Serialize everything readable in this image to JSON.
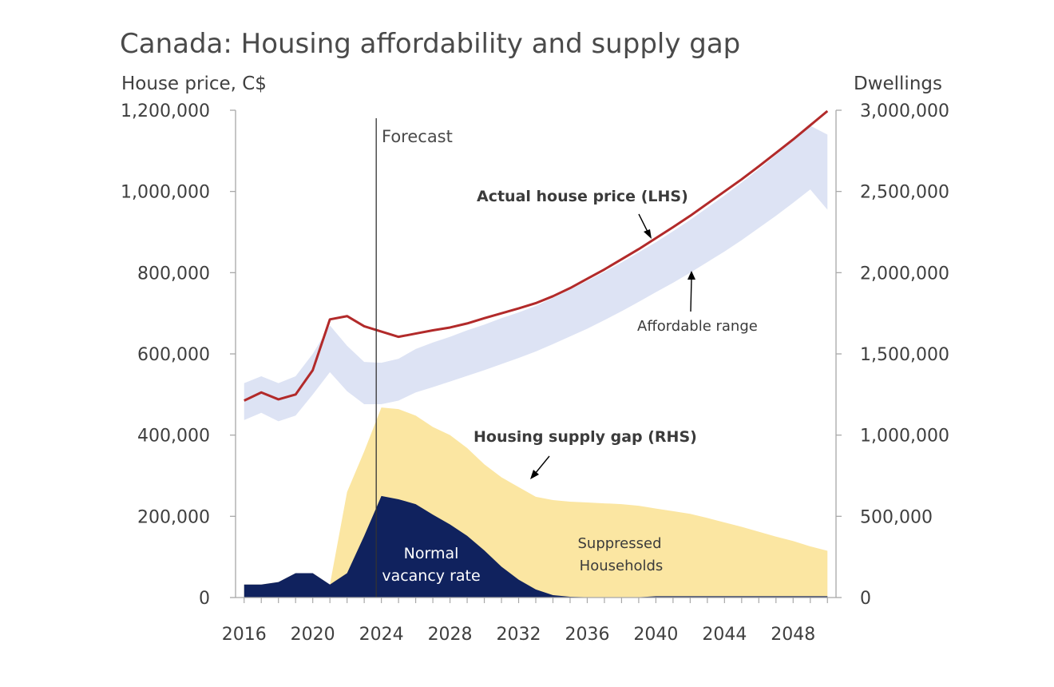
{
  "chart_data": {
    "type": "area",
    "title": "Canada: Housing affordability and supply gap",
    "left_axis": {
      "label": "House price, C$",
      "ylim": [
        0,
        1200000
      ],
      "ticks": [
        0,
        200000,
        400000,
        600000,
        800000,
        1000000,
        1200000
      ],
      "tick_labels": [
        "0",
        "200,000",
        "400,000",
        "600,000",
        "800,000",
        "1,000,000",
        "1,200,000"
      ]
    },
    "right_axis": {
      "label": "Dwellings",
      "ylim": [
        0,
        3000000
      ],
      "ticks": [
        0,
        500000,
        1000000,
        1500000,
        2000000,
        2500000,
        3000000
      ],
      "tick_labels": [
        "0",
        "500,000",
        "1,000,000",
        "1,500,000",
        "2,000,000",
        "2,500,000",
        "3,000,000"
      ]
    },
    "x_axis": {
      "xlim": [
        2015.5,
        2050.5
      ],
      "ticks": [
        2016,
        2020,
        2024,
        2028,
        2032,
        2036,
        2040,
        2044,
        2048
      ],
      "tick_labels": [
        "2016",
        "2020",
        "2024",
        "2028",
        "2032",
        "2036",
        "2040",
        "2044",
        "2048"
      ]
    },
    "forecast_start": 2023.7,
    "x": [
      2016,
      2017,
      2018,
      2019,
      2020,
      2021,
      2022,
      2023,
      2024,
      2025,
      2026,
      2027,
      2028,
      2029,
      2030,
      2031,
      2032,
      2033,
      2034,
      2035,
      2036,
      2037,
      2038,
      2039,
      2040,
      2041,
      2042,
      2043,
      2044,
      2045,
      2046,
      2047,
      2048,
      2049,
      2050
    ],
    "series": [
      {
        "name": "Actual house price (LHS)",
        "axis": "left",
        "kind": "line",
        "color": "#b22a2a",
        "values": [
          485000,
          505000,
          488000,
          500000,
          560000,
          685000,
          693000,
          668000,
          655000,
          642000,
          650000,
          658000,
          665000,
          675000,
          688000,
          700000,
          712000,
          725000,
          742000,
          762000,
          785000,
          808000,
          833000,
          858000,
          885000,
          912000,
          940000,
          970000,
          1000000,
          1030000,
          1062000,
          1095000,
          1128000,
          1163000,
          1198000
        ]
      },
      {
        "name": "Affordable range",
        "axis": "left",
        "kind": "band",
        "color": "#dde3f4",
        "upper": [
          528000,
          545000,
          528000,
          545000,
          600000,
          670000,
          620000,
          580000,
          578000,
          588000,
          612000,
          628000,
          642000,
          658000,
          672000,
          688000,
          702000,
          718000,
          738000,
          758000,
          780000,
          802000,
          825000,
          850000,
          875000,
          902000,
          930000,
          960000,
          990000,
          1022000,
          1055000,
          1090000,
          1125000,
          1162000,
          1140000
        ],
        "lower": [
          437000,
          455000,
          434000,
          448000,
          500000,
          555000,
          508000,
          476000,
          476000,
          485000,
          505000,
          518000,
          532000,
          546000,
          560000,
          575000,
          590000,
          606000,
          624000,
          643000,
          662000,
          683000,
          705000,
          728000,
          752000,
          775000,
          800000,
          826000,
          852000,
          880000,
          910000,
          940000,
          972000,
          1005000,
          955000
        ]
      },
      {
        "name": "Housing supply gap (RHS)",
        "axis": "right",
        "kind": "area",
        "color": "#fbe6a2",
        "values": [
          80000,
          80000,
          95000,
          150000,
          150000,
          80000,
          650000,
          900000,
          1170000,
          1160000,
          1120000,
          1050000,
          1000000,
          920000,
          820000,
          740000,
          680000,
          620000,
          600000,
          590000,
          585000,
          580000,
          575000,
          565000,
          548000,
          532000,
          515000,
          490000,
          462000,
          435000,
          405000,
          375000,
          348000,
          315000,
          288000
        ]
      },
      {
        "name": "Normal vacancy rate",
        "axis": "right",
        "kind": "area",
        "color": "#10225e",
        "values": [
          80000,
          80000,
          95000,
          150000,
          150000,
          80000,
          150000,
          380000,
          625000,
          605000,
          575000,
          510000,
          450000,
          380000,
          290000,
          190000,
          110000,
          50000,
          15000,
          5000,
          2000,
          0,
          0,
          2000,
          8000,
          8000,
          8000,
          8000,
          8000,
          8000,
          8000,
          8000,
          8000,
          8000,
          8000
        ]
      }
    ],
    "annotations": {
      "forecast": "Forecast",
      "actual_price": "Actual house price (LHS)",
      "affordable_range": "Affordable range",
      "supply_gap": "Housing supply gap (RHS)",
      "suppressed_line1": "Suppressed",
      "suppressed_line2": "Households",
      "vacancy_line1": "Normal",
      "vacancy_line2": "vacancy rate"
    }
  }
}
